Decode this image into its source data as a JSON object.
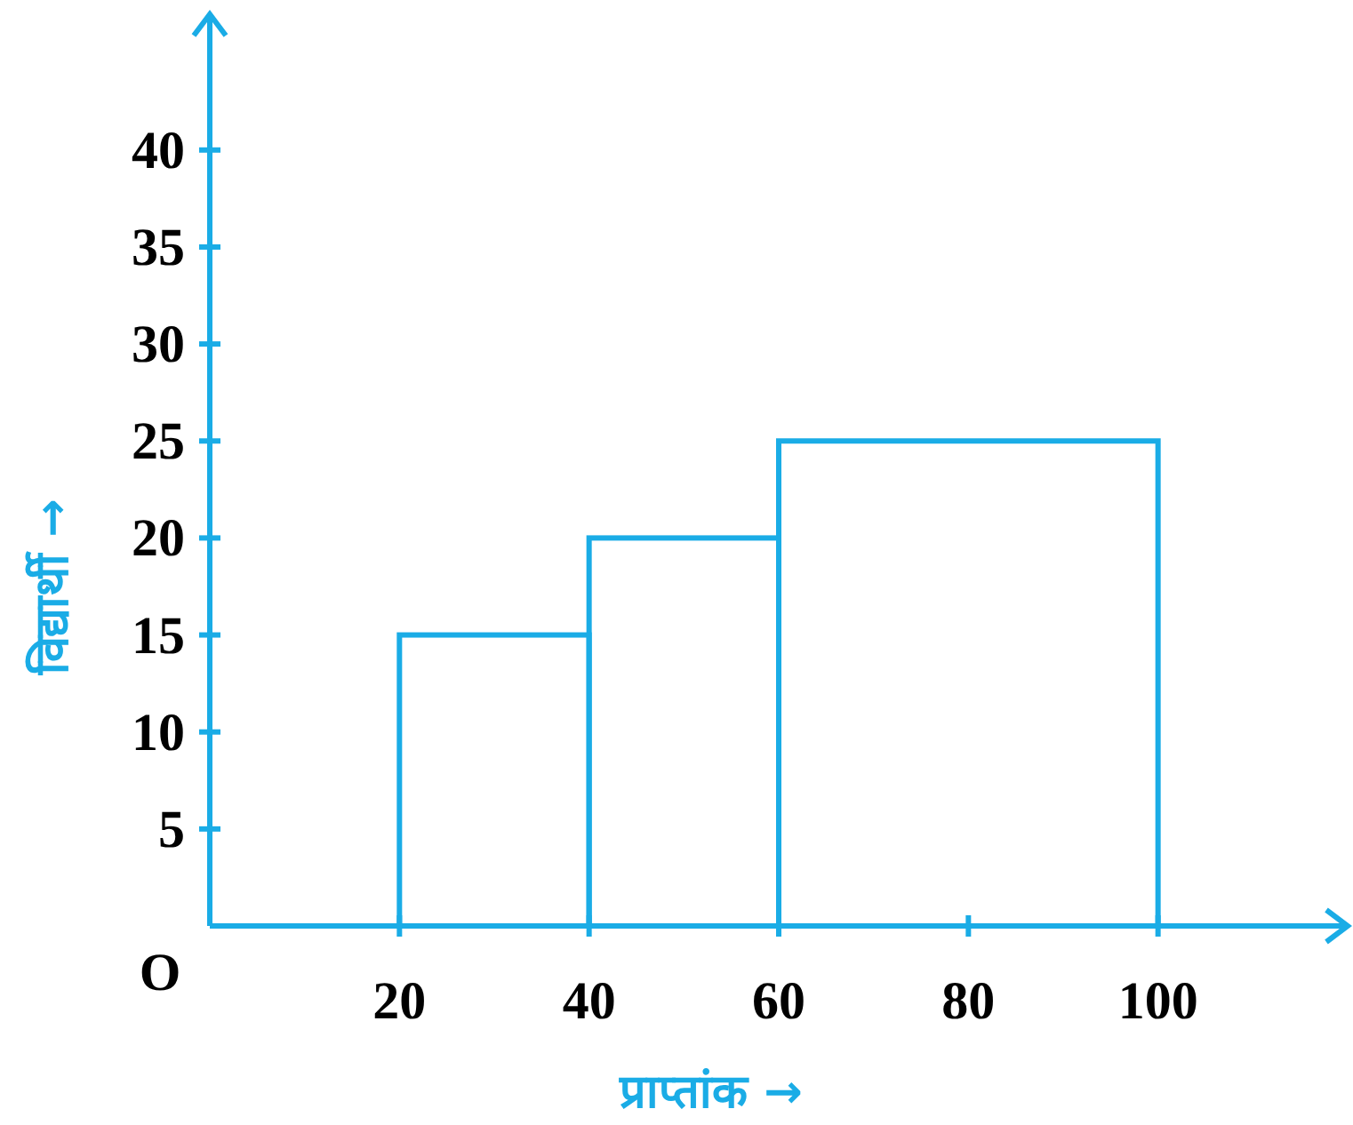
{
  "chart_data": {
    "type": "histogram",
    "xlabel": "प्राप्तांक →",
    "ylabel": "विद्यार्थी →",
    "bins": [
      20,
      40,
      60,
      100
    ],
    "values": [
      15,
      20,
      25
    ],
    "color": "#1aace6",
    "xlim": [
      0,
      120
    ],
    "ylim": [
      0,
      47
    ],
    "xticks": [
      20,
      40,
      60,
      80,
      100
    ],
    "yticks": [
      5,
      10,
      15,
      20,
      25,
      30,
      35,
      40
    ],
    "annotations": [
      "O"
    ],
    "grid": false
  }
}
